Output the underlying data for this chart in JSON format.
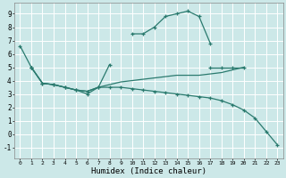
{
  "xlabel": "Humidex (Indice chaleur)",
  "bg_color": "#cce8e8",
  "grid_color": "#ffffff",
  "line_color": "#2a7a6e",
  "xlim": [
    -0.5,
    23.5
  ],
  "ylim": [
    -1.8,
    9.8
  ],
  "xticks": [
    0,
    1,
    2,
    3,
    4,
    5,
    6,
    7,
    8,
    9,
    10,
    11,
    12,
    13,
    14,
    15,
    16,
    17,
    18,
    19,
    20,
    21,
    22,
    23
  ],
  "yticks": [
    -1,
    0,
    1,
    2,
    3,
    4,
    5,
    6,
    7,
    8,
    9
  ],
  "series": [
    {
      "segments": [
        {
          "x": [
            0,
            1
          ],
          "y": [
            6.6,
            5.0
          ]
        },
        {
          "x": [
            10,
            11,
            12,
            13,
            14,
            15,
            16,
            17
          ],
          "y": [
            7.5,
            7.5,
            8.0,
            8.8,
            9.0,
            9.2,
            8.8,
            6.8
          ]
        }
      ],
      "marker": true
    },
    {
      "segments": [
        {
          "x": [
            1,
            2,
            3,
            4,
            5,
            6,
            7,
            8
          ],
          "y": [
            5.0,
            3.8,
            3.7,
            3.5,
            3.3,
            3.0,
            3.5,
            5.2
          ]
        },
        {
          "x": [
            17,
            18,
            19,
            20
          ],
          "y": [
            5.0,
            5.0,
            5.0,
            5.0
          ]
        }
      ],
      "marker": true
    },
    {
      "segments": [
        {
          "x": [
            1,
            2,
            3,
            4,
            5,
            6,
            7,
            8,
            9,
            10,
            11,
            12,
            13,
            14,
            15,
            16,
            17,
            18,
            19,
            20
          ],
          "y": [
            5.0,
            3.8,
            3.7,
            3.5,
            3.3,
            3.2,
            3.5,
            3.7,
            3.9,
            4.0,
            4.1,
            4.2,
            4.3,
            4.4,
            4.4,
            4.4,
            4.5,
            4.6,
            4.8,
            5.0
          ]
        }
      ],
      "marker": false
    },
    {
      "segments": [
        {
          "x": [
            1,
            2,
            3,
            4,
            5,
            6,
            7,
            8,
            9,
            10,
            11,
            12,
            13,
            14,
            15,
            16,
            17,
            18,
            19,
            20,
            21,
            22,
            23
          ],
          "y": [
            5.0,
            3.8,
            3.7,
            3.5,
            3.3,
            3.2,
            3.5,
            3.5,
            3.5,
            3.4,
            3.3,
            3.2,
            3.1,
            3.0,
            2.9,
            2.8,
            2.7,
            2.5,
            2.2,
            1.8,
            1.2,
            0.2,
            -0.8
          ]
        }
      ],
      "marker": true
    }
  ]
}
